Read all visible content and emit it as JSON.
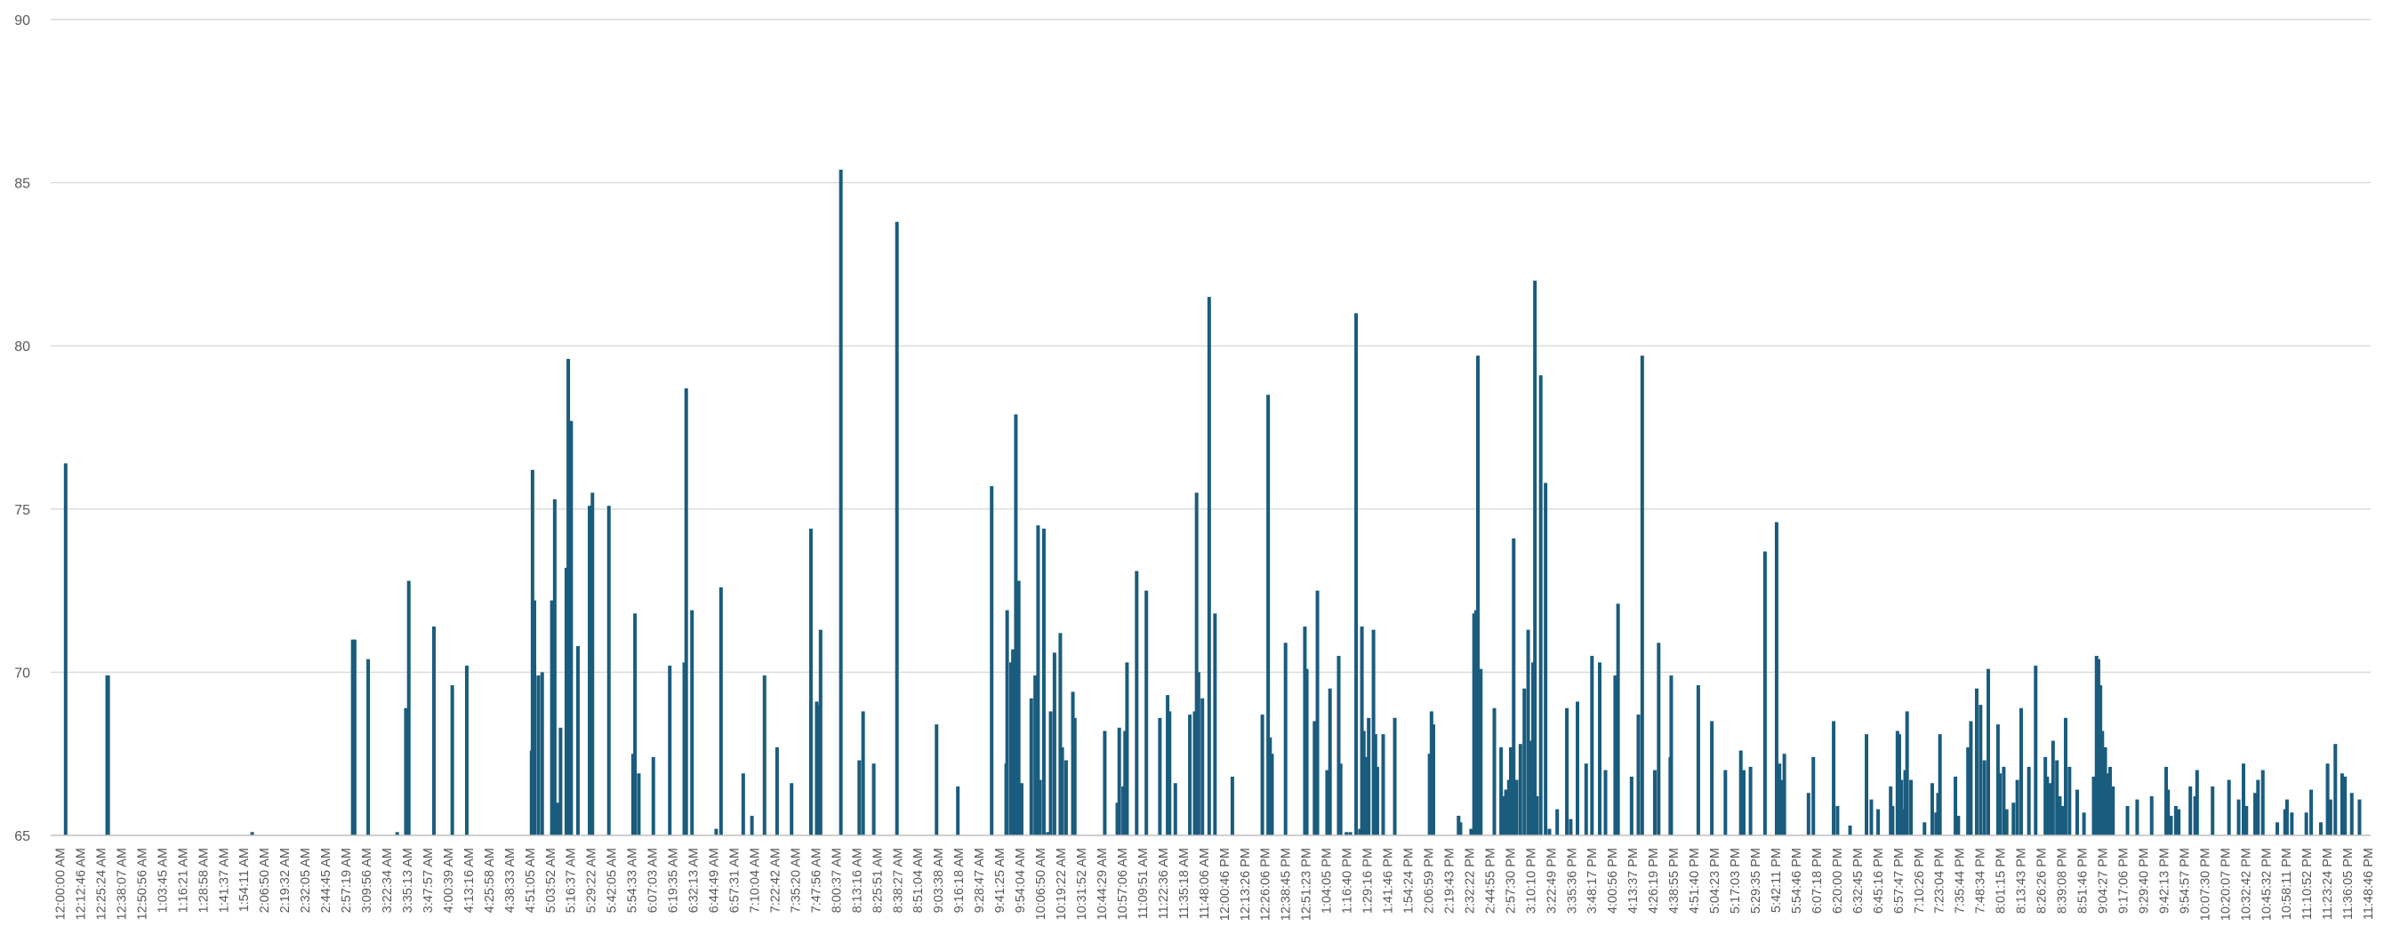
{
  "chart_data": {
    "type": "bar",
    "title": "",
    "xlabel": "",
    "ylabel": "",
    "ylim": [
      65,
      90
    ],
    "y_ticks": [
      65,
      70,
      75,
      80,
      85,
      90
    ],
    "grid": true,
    "bar_color": "#1a5c7d",
    "x_tick_labels": [
      "12:00:00 AM",
      "12:12:46 AM",
      "12:25:24 AM",
      "12:38:07 AM",
      "12:50:56 AM",
      "1:03:45 AM",
      "1:16:21 AM",
      "1:28:58 AM",
      "1:41:37 AM",
      "1:54:11 AM",
      "2:06:50 AM",
      "2:19:32 AM",
      "2:32:05 AM",
      "2:44:45 AM",
      "2:57:19 AM",
      "3:09:56 AM",
      "3:22:34 AM",
      "3:35:13 AM",
      "3:47:57 AM",
      "4:00:39 AM",
      "4:13:16 AM",
      "4:25:58 AM",
      "4:38:33 AM",
      "4:51:05 AM",
      "5:03:52 AM",
      "5:16:37 AM",
      "5:29:22 AM",
      "5:42:05 AM",
      "5:54:33 AM",
      "6:07:03 AM",
      "6:19:35 AM",
      "6:32:13 AM",
      "6:44:49 AM",
      "6:57:31 AM",
      "7:10:04 AM",
      "7:22:42 AM",
      "7:35:20 AM",
      "7:47:56 AM",
      "8:00:37 AM",
      "8:13:16 AM",
      "8:25:51 AM",
      "8:38:27 AM",
      "8:51:04 AM",
      "9:03:38 AM",
      "9:16:18 AM",
      "9:28:47 AM",
      "9:41:25 AM",
      "9:54:04 AM",
      "10:06:50 AM",
      "10:19:22 AM",
      "10:31:52 AM",
      "10:44:29 AM",
      "10:57:06 AM",
      "11:09:51 AM",
      "11:22:36 AM",
      "11:35:18 AM",
      "11:48:06 AM",
      "12:00:46 PM",
      "12:13:26 PM",
      "12:26:06 PM",
      "12:38:45 PM",
      "12:51:23 PM",
      "1:04:05 PM",
      "1:16:40 PM",
      "1:29:16 PM",
      "1:41:46 PM",
      "1:54:24 PM",
      "2:06:59 PM",
      "2:19:43 PM",
      "2:32:22 PM",
      "2:44:55 PM",
      "2:57:30 PM",
      "3:10:10 PM",
      "3:22:49 PM",
      "3:35:36 PM",
      "3:48:17 PM",
      "4:00:56 PM",
      "4:13:37 PM",
      "4:26:19 PM",
      "4:38:55 PM",
      "4:51:40 PM",
      "5:04:23 PM",
      "5:17:03 PM",
      "5:29:35 PM",
      "5:42:11 PM",
      "5:54:46 PM",
      "6:07:18 PM",
      "6:20:00 PM",
      "6:32:45 PM",
      "6:45:16 PM",
      "6:57:47 PM",
      "7:10:26 PM",
      "7:23:04 PM",
      "7:35:44 PM",
      "7:48:34 PM",
      "8:01:15 PM",
      "8:13:43 PM",
      "8:26:26 PM",
      "8:39:08 PM",
      "8:51:46 PM",
      "9:04:27 PM",
      "9:17:06 PM",
      "9:29:40 PM",
      "9:42:13 PM",
      "9:54:57 PM",
      "10:07:30 PM",
      "10:20:07 PM",
      "10:32:42 PM",
      "10:45:32 PM",
      "10:58:11 PM",
      "11:10:52 PM",
      "11:23:24 PM",
      "11:36:05 PM",
      "11:48:46 PM"
    ],
    "bar_positions_hours": [
      0.07,
      0.5,
      0.51,
      2.0,
      3.04,
      3.06,
      3.2,
      3.5,
      3.59,
      3.62,
      3.88,
      4.07,
      4.22,
      4.89,
      4.9,
      4.92,
      4.96,
      5.0,
      5.1,
      5.13,
      5.16,
      5.19,
      5.25,
      5.27,
      5.3,
      5.37,
      5.49,
      5.52,
      5.69,
      5.94,
      5.96,
      6.0,
      6.15,
      6.32,
      6.47,
      6.49,
      6.55,
      6.8,
      6.85,
      7.08,
      7.17,
      7.3,
      7.43,
      7.58,
      7.78,
      7.84,
      7.86,
      7.88,
      8.09,
      8.28,
      8.32,
      8.43,
      8.67,
      9.08,
      9.3,
      9.65,
      9.8,
      9.81,
      9.85,
      9.87,
      9.9,
      9.93,
      9.96,
      10.06,
      10.1,
      10.13,
      10.15,
      10.19,
      10.23,
      10.26,
      10.3,
      10.36,
      10.38,
      10.42,
      10.49,
      10.51,
      10.82,
      10.95,
      10.97,
      11.01,
      11.03,
      11.05,
      11.15,
      11.25,
      11.39,
      11.47,
      11.49,
      11.55,
      11.7,
      11.75,
      11.77,
      11.79,
      11.83,
      11.9,
      11.96,
      12.14,
      12.45,
      12.51,
      12.53,
      12.55,
      12.69,
      12.89,
      12.91,
      12.99,
      13.02,
      13.12,
      13.15,
      13.24,
      13.26,
      13.32,
      13.36,
      13.42,
      13.46,
      13.48,
      13.5,
      13.52,
      13.55,
      13.6,
      13.62,
      13.64,
      13.7,
      13.82,
      14.18,
      14.2,
      14.22,
      14.48,
      14.5,
      14.61,
      14.64,
      14.66,
      14.68,
      14.71,
      14.85,
      14.92,
      14.94,
      14.97,
      15.0,
      15.02,
      15.05,
      15.08,
      15.12,
      15.16,
      15.2,
      15.23,
      15.25,
      15.27,
      15.29,
      15.33,
      15.38,
      15.42,
      15.5,
      15.6,
      15.64,
      15.71,
      15.8,
      15.86,
      15.94,
      16.0,
      16.1,
      16.13,
      16.27,
      16.34,
      16.38,
      16.51,
      16.55,
      16.67,
      16.68,
      16.96,
      17.1,
      17.24,
      17.4,
      17.43,
      17.5,
      17.65,
      17.77,
      17.8,
      17.82,
      17.85,
      18.1,
      18.15,
      18.36,
      18.4,
      18.53,
      18.7,
      18.75,
      18.82,
      18.95,
      18.97,
      19.02,
      19.04,
      19.06,
      19.08,
      19.1,
      19.12,
      19.16,
      19.3,
      19.38,
      19.42,
      19.44,
      19.46,
      19.62,
      19.65,
      19.75,
      19.78,
      19.84,
      19.88,
      19.92,
      19.96,
      20.06,
      20.08,
      20.12,
      20.15,
      20.22,
      20.26,
      20.3,
      20.38,
      20.45,
      20.55,
      20.57,
      20.6,
      20.63,
      20.67,
      20.7,
      20.73,
      20.76,
      20.8,
      20.88,
      20.95,
      21.05,
      21.08,
      21.1,
      21.12,
      21.14,
      21.17,
      21.19,
      21.22,
      21.25,
      21.4,
      21.5,
      21.65,
      21.8,
      21.82,
      21.85,
      21.9,
      21.93,
      22.05,
      22.1,
      22.12,
      22.28,
      22.45,
      22.55,
      22.6,
      22.63,
      22.72,
      22.75,
      22.8,
      22.95,
      23.03,
      23.05,
      23.1,
      23.25,
      23.3,
      23.4,
      23.47,
      23.5,
      23.55,
      23.62,
      23.65,
      23.72,
      23.8
    ],
    "values": [
      76.4,
      69.9,
      69.9,
      65.1,
      71.0,
      71.0,
      70.4,
      65.1,
      68.9,
      72.8,
      71.4,
      69.6,
      70.2,
      67.6,
      76.2,
      72.2,
      69.9,
      70.0,
      72.2,
      75.3,
      66.0,
      68.3,
      73.2,
      79.6,
      77.7,
      70.8,
      75.1,
      75.5,
      75.1,
      67.5,
      71.8,
      66.9,
      67.4,
      70.2,
      70.3,
      78.7,
      71.9,
      65.2,
      72.6,
      66.9,
      65.6,
      69.9,
      67.7,
      66.6,
      74.4,
      69.1,
      69.0,
      71.3,
      85.4,
      67.3,
      68.8,
      67.2,
      83.8,
      68.4,
      66.5,
      75.7,
      67.2,
      71.9,
      70.3,
      70.7,
      77.9,
      72.8,
      66.6,
      69.2,
      69.9,
      74.5,
      66.7,
      74.4,
      65.1,
      68.8,
      70.6,
      71.2,
      67.7,
      67.3,
      69.4,
      68.6,
      68.2,
      66.0,
      68.3,
      66.5,
      68.2,
      70.3,
      73.1,
      72.5,
      68.6,
      69.3,
      68.8,
      66.6,
      68.7,
      68.8,
      75.5,
      70.0,
      69.2,
      81.5,
      71.8,
      66.8,
      68.7,
      78.5,
      68.0,
      67.5,
      70.9,
      71.4,
      70.1,
      68.5,
      72.5,
      67.0,
      69.5,
      70.5,
      67.2,
      65.1,
      65.1,
      81.0,
      65.2,
      71.4,
      68.2,
      67.4,
      68.6,
      71.3,
      68.1,
      67.1,
      68.1,
      68.6,
      67.5,
      68.8,
      68.4,
      65.6,
      65.4,
      65.2,
      71.8,
      71.9,
      79.7,
      70.1,
      68.9,
      67.7,
      66.2,
      66.4,
      66.7,
      67.7,
      74.1,
      66.7,
      67.8,
      69.5,
      71.3,
      67.9,
      70.3,
      82.0,
      66.2,
      79.1,
      75.8,
      65.2,
      65.8,
      68.9,
      65.5,
      69.1,
      67.2,
      70.5,
      70.3,
      67.0,
      69.9,
      72.1,
      66.8,
      68.7,
      79.7,
      67.0,
      70.9,
      67.4,
      69.9,
      69.6,
      68.5,
      67.0,
      67.6,
      67.0,
      67.1,
      73.7,
      74.6,
      67.2,
      66.7,
      67.5,
      66.3,
      67.4,
      68.5,
      65.9,
      65.3,
      68.1,
      66.1,
      65.8,
      66.5,
      65.9,
      68.2,
      68.1,
      66.7,
      65.8,
      67.0,
      68.8,
      66.7,
      65.4,
      66.6,
      65.7,
      66.3,
      68.1,
      66.8,
      65.6,
      67.7,
      68.5,
      69.5,
      69.0,
      67.3,
      70.1,
      68.4,
      66.9,
      67.1,
      65.8,
      66.0,
      66.7,
      68.9,
      67.1,
      70.2,
      67.4,
      66.8,
      66.6,
      67.9,
      67.3,
      66.2,
      65.9,
      68.6,
      67.1,
      66.4,
      65.7,
      66.8,
      70.5,
      70.4,
      69.6,
      68.2,
      67.7,
      66.9,
      67.1,
      66.5,
      65.9,
      66.1,
      66.2,
      67.1,
      66.4,
      65.6,
      65.9,
      65.8,
      66.5,
      66.2,
      67.0,
      66.5,
      66.7,
      66.1,
      67.2,
      65.9,
      66.3,
      66.7,
      67.0,
      65.4,
      65.8,
      66.1,
      65.7,
      65.7,
      66.4,
      65.4,
      67.2,
      66.1,
      67.8,
      66.9,
      66.8,
      66.3,
      66.1
    ]
  }
}
